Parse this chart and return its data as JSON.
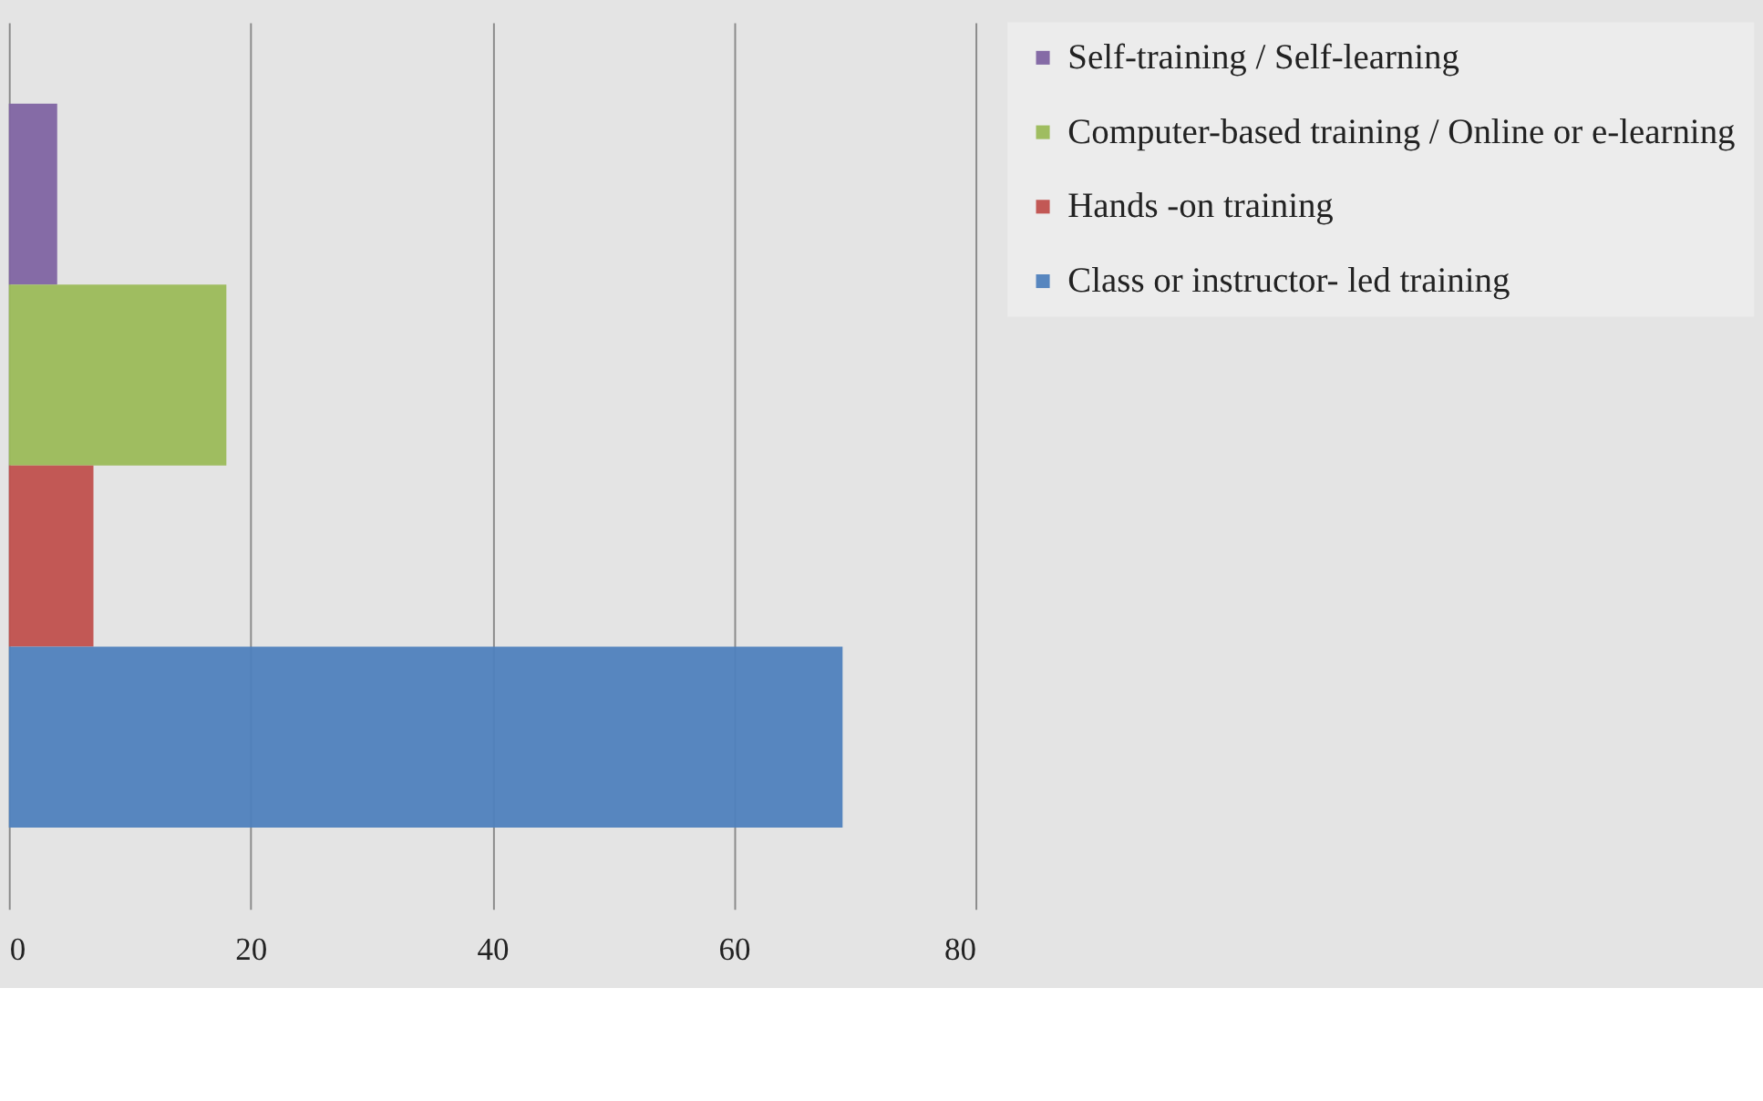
{
  "chart_data": {
    "type": "bar",
    "orientation": "horizontal",
    "categories": [
      null,
      null,
      null,
      null
    ],
    "series": [
      {
        "name": "Self-training / Self-learning",
        "color": "#8064a2",
        "values": [
          4,
          null,
          null,
          null
        ]
      },
      {
        "name": "Computer-based training / Online or e-learning",
        "color": "#9bbb59",
        "values": [
          null,
          18,
          null,
          null
        ]
      },
      {
        "name": "Hands -on training",
        "color": "#c0504d",
        "values": [
          null,
          null,
          7,
          null
        ]
      },
      {
        "name": "Class or instructor- led training",
        "color": "#4f81bd",
        "values": [
          null,
          null,
          null,
          69
        ]
      }
    ],
    "xlim": [
      0,
      80
    ],
    "xticks": [
      0,
      20,
      40,
      60,
      80
    ],
    "grid": "x",
    "legend": "right",
    "tick_labels": "x"
  }
}
